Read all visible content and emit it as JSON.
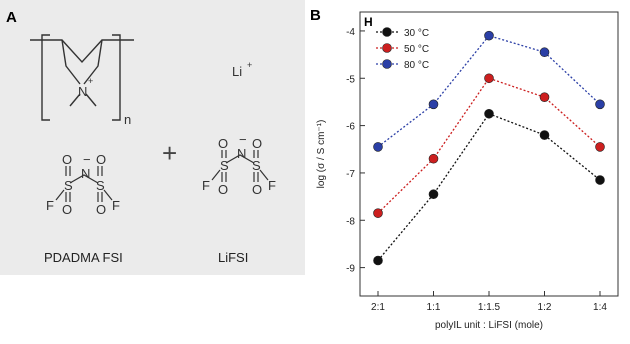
{
  "panel_a": {
    "label": "A",
    "subscript_n": "n",
    "cation_label": "Li",
    "cation_charge": "+",
    "plus_sign": "+",
    "n_charge": "+",
    "atom_n": "N",
    "atom_s": "S",
    "atom_o": "O",
    "atom_f": "F",
    "minus": "−",
    "compound_1": "PDADMA FSI",
    "compound_2": "LiFSI"
  },
  "chart_data": {
    "panel_label": "B",
    "type": "line",
    "corner_label": "H",
    "categories": [
      "2:1",
      "1:1",
      "1:1.5",
      "1:2",
      "1:4"
    ],
    "series": [
      {
        "name": "30 °C",
        "color": "#111111",
        "values": [
          -8.85,
          -7.45,
          -5.75,
          -6.2,
          -7.15
        ]
      },
      {
        "name": "50 °C",
        "color": "#cc1f1f",
        "values": [
          -7.85,
          -6.7,
          -5.0,
          -5.4,
          -6.45
        ]
      },
      {
        "name": "80 °C",
        "color": "#2b3fa6",
        "values": [
          -6.45,
          -5.55,
          -4.1,
          -4.45,
          -5.55
        ]
      }
    ],
    "ylim": [
      -9.6,
      -3.6
    ],
    "yticks": [
      -9,
      -8,
      -7,
      -6,
      -5,
      -4
    ],
    "ylabel": "log (σ / S cm⁻¹)",
    "xlabel": "polyIL unit : LiFSI (mole)",
    "legend_position": "top-left"
  }
}
